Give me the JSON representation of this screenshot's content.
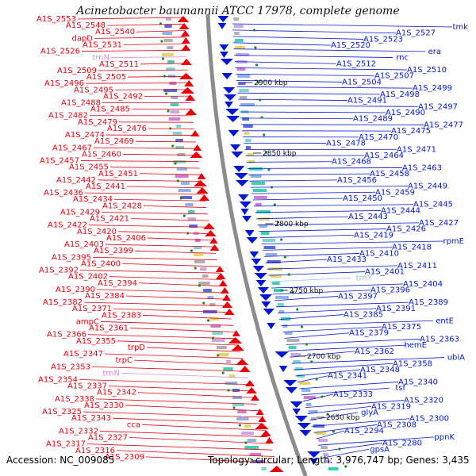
{
  "title": "Acinetobacter baumannii ATCC 17978, complete genome",
  "footer": {
    "accession": "Accession: NC_009085",
    "summary": "Topology: circular; Length: 3,976,747 bp; Genes: 3,435"
  },
  "colors": {
    "left_strand": "#e8000b",
    "right_strand": "#0018d4",
    "rna": "#e58ad6",
    "backbone": "#8c8c8c",
    "green_dot": "#1e8c1e"
  },
  "kbp_ticks": [
    "2900 kbp",
    "2850 kbp",
    "2800 kbp",
    "2750 kbp",
    "2700 kbp",
    "2650 kbp"
  ],
  "left_labels": [
    {
      "text": "A1S_2553",
      "kind": "gene"
    },
    {
      "text": "A1S_2548",
      "kind": "gene"
    },
    {
      "text": "A1S_2540",
      "kind": "gene"
    },
    {
      "text": "dapD",
      "kind": "gene"
    },
    {
      "text": "A1S_2531",
      "kind": "gene"
    },
    {
      "text": "A1S_2526",
      "kind": "gene"
    },
    {
      "text": "trnN",
      "kind": "rna"
    },
    {
      "text": "A1S_2511",
      "kind": "gene"
    },
    {
      "text": "A1S_2509",
      "kind": "gene"
    },
    {
      "text": "A1S_2505",
      "kind": "gene"
    },
    {
      "text": "A1S_2496",
      "kind": "gene"
    },
    {
      "text": "A1S_2495",
      "kind": "gene"
    },
    {
      "text": "A1S_2492",
      "kind": "gene"
    },
    {
      "text": "A1S_2488",
      "kind": "gene"
    },
    {
      "text": "A1S_2485",
      "kind": "gene"
    },
    {
      "text": "A1S_2482",
      "kind": "gene"
    },
    {
      "text": "A1S_2479",
      "kind": "gene"
    },
    {
      "text": "A1S_2476",
      "kind": "gene"
    },
    {
      "text": "A1S_2474",
      "kind": "gene"
    },
    {
      "text": "A1S_2469",
      "kind": "gene"
    },
    {
      "text": "A1S_2467",
      "kind": "gene"
    },
    {
      "text": "A1S_2460",
      "kind": "gene"
    },
    {
      "text": "A1S_2457",
      "kind": "gene"
    },
    {
      "text": "A1S_2455",
      "kind": "gene"
    },
    {
      "text": "A1S_2451",
      "kind": "gene"
    },
    {
      "text": "A1S_2442",
      "kind": "gene"
    },
    {
      "text": "A1S_2441",
      "kind": "gene"
    },
    {
      "text": "A1S_2436",
      "kind": "gene"
    },
    {
      "text": "A1S_2434",
      "kind": "gene"
    },
    {
      "text": "A1S_2428",
      "kind": "gene"
    },
    {
      "text": "A1S_2429",
      "kind": "gene"
    },
    {
      "text": "A1S_2421",
      "kind": "gene"
    },
    {
      "text": "A1S_2422",
      "kind": "gene"
    },
    {
      "text": "A1S_2420",
      "kind": "gene"
    },
    {
      "text": "A1S_2406",
      "kind": "gene"
    },
    {
      "text": "A1S_2403",
      "kind": "gene"
    },
    {
      "text": "A1S_2399",
      "kind": "gene"
    },
    {
      "text": "A1S_2395",
      "kind": "gene"
    },
    {
      "text": "A1S_2400",
      "kind": "gene"
    },
    {
      "text": "A1S_2392",
      "kind": "gene"
    },
    {
      "text": "A1S_2402",
      "kind": "gene"
    },
    {
      "text": "A1S_2394",
      "kind": "gene"
    },
    {
      "text": "A1S_2390",
      "kind": "gene"
    },
    {
      "text": "A1S_2384",
      "kind": "gene"
    },
    {
      "text": "A1S_2382",
      "kind": "gene"
    },
    {
      "text": "A1S_2371",
      "kind": "gene"
    },
    {
      "text": "A1S_2383",
      "kind": "gene"
    },
    {
      "text": "ampC",
      "kind": "gene"
    },
    {
      "text": "A1S_2361",
      "kind": "gene"
    },
    {
      "text": "A1S_2366",
      "kind": "gene"
    },
    {
      "text": "A1S_2355",
      "kind": "gene"
    },
    {
      "text": "trpD",
      "kind": "gene"
    },
    {
      "text": "A1S_2347",
      "kind": "gene"
    },
    {
      "text": "trpC",
      "kind": "gene"
    },
    {
      "text": "A1S_2353",
      "kind": "gene"
    },
    {
      "text": "trnN",
      "kind": "rna"
    },
    {
      "text": "A1S_2354",
      "kind": "gene"
    },
    {
      "text": "A1S_2337",
      "kind": "gene"
    },
    {
      "text": "A1S_2342",
      "kind": "gene"
    },
    {
      "text": "A1S_2338",
      "kind": "gene"
    },
    {
      "text": "A1S_2330",
      "kind": "gene"
    },
    {
      "text": "A1S_2325",
      "kind": "gene"
    },
    {
      "text": "A1S_2343",
      "kind": "gene"
    },
    {
      "text": "cca",
      "kind": "gene"
    },
    {
      "text": "A1S_2332",
      "kind": "gene"
    },
    {
      "text": "A1S_2327",
      "kind": "gene"
    },
    {
      "text": "A1S_2317",
      "kind": "gene"
    },
    {
      "text": "A1S_2316",
      "kind": "gene"
    },
    {
      "text": "A1S_2309",
      "kind": "gene"
    }
  ],
  "right_labels": [
    {
      "text": "tmk",
      "kind": "gene"
    },
    {
      "text": "A1S_2527",
      "kind": "gene"
    },
    {
      "text": "A1S_2523",
      "kind": "gene"
    },
    {
      "text": "A1S_2520",
      "kind": "gene"
    },
    {
      "text": "era",
      "kind": "gene"
    },
    {
      "text": "rnc",
      "kind": "gene"
    },
    {
      "text": "A1S_2512",
      "kind": "gene"
    },
    {
      "text": "A1S_2510",
      "kind": "gene"
    },
    {
      "text": "A1S_2507",
      "kind": "gene"
    },
    {
      "text": "A1S_2504",
      "kind": "gene"
    },
    {
      "text": "A1S_2499",
      "kind": "gene"
    },
    {
      "text": "A1S_2498",
      "kind": "gene"
    },
    {
      "text": "A1S_2491",
      "kind": "gene"
    },
    {
      "text": "A1S_2497",
      "kind": "gene"
    },
    {
      "text": "A1S_2490",
      "kind": "gene"
    },
    {
      "text": "A1S_2489",
      "kind": "gene"
    },
    {
      "text": "A1S_2477",
      "kind": "gene"
    },
    {
      "text": "A1S_2475",
      "kind": "gene"
    },
    {
      "text": "A1S_2470",
      "kind": "gene"
    },
    {
      "text": "A1S_2478",
      "kind": "gene"
    },
    {
      "text": "A1S_2471",
      "kind": "gene"
    },
    {
      "text": "A1S_2464",
      "kind": "gene"
    },
    {
      "text": "A1S_2468",
      "kind": "gene"
    },
    {
      "text": "A1S_2463",
      "kind": "gene"
    },
    {
      "text": "A1S_2458",
      "kind": "gene"
    },
    {
      "text": "A1S_2456",
      "kind": "gene"
    },
    {
      "text": "A1S_2449",
      "kind": "gene"
    },
    {
      "text": "A1S_2459",
      "kind": "gene"
    },
    {
      "text": "A1S_2450",
      "kind": "gene"
    },
    {
      "text": "A1S_2445",
      "kind": "gene"
    },
    {
      "text": "A1S_2444",
      "kind": "gene"
    },
    {
      "text": "A1S_2443",
      "kind": "gene"
    },
    {
      "text": "A1S_2427",
      "kind": "gene"
    },
    {
      "text": "A1S_2426",
      "kind": "gene"
    },
    {
      "text": "A1S_2419",
      "kind": "gene"
    },
    {
      "text": "rpmE",
      "kind": "gene"
    },
    {
      "text": "A1S_2418",
      "kind": "gene"
    },
    {
      "text": "A1S_2410",
      "kind": "gene"
    },
    {
      "text": "A1S_2433",
      "kind": "gene"
    },
    {
      "text": "A1S_2411",
      "kind": "gene"
    },
    {
      "text": "A1S_2401",
      "kind": "gene"
    },
    {
      "text": "trnY",
      "kind": "rna2"
    },
    {
      "text": "A1S_2404",
      "kind": "gene"
    },
    {
      "text": "A1S_2396",
      "kind": "gene"
    },
    {
      "text": "A1S_2397",
      "kind": "gene"
    },
    {
      "text": "A1S_2389",
      "kind": "gene"
    },
    {
      "text": "A1S_2391",
      "kind": "gene"
    },
    {
      "text": "A1S_2385",
      "kind": "gene"
    },
    {
      "text": "entE",
      "kind": "gene"
    },
    {
      "text": "A1S_2375",
      "kind": "gene"
    },
    {
      "text": "A1S_2379",
      "kind": "gene"
    },
    {
      "text": "A1S_2363",
      "kind": "gene"
    },
    {
      "text": "hemE",
      "kind": "gene"
    },
    {
      "text": "A1S_2362",
      "kind": "gene"
    },
    {
      "text": "ubiA",
      "kind": "gene"
    },
    {
      "text": "A1S_2358",
      "kind": "gene"
    },
    {
      "text": "A1S_2348",
      "kind": "gene"
    },
    {
      "text": "A1S_2341",
      "kind": "gene"
    },
    {
      "text": "A1S_2340",
      "kind": "gene"
    },
    {
      "text": "tsf",
      "kind": "gene"
    },
    {
      "text": "A1S_2333",
      "kind": "gene"
    },
    {
      "text": "A1S_2320",
      "kind": "gene"
    },
    {
      "text": "A1S_2319",
      "kind": "gene"
    },
    {
      "text": "glyA",
      "kind": "gene"
    },
    {
      "text": "A1S_2300",
      "kind": "gene"
    },
    {
      "text": "A1S_2308",
      "kind": "gene"
    },
    {
      "text": "A1S_2294",
      "kind": "gene"
    },
    {
      "text": "ppnK",
      "kind": "gene"
    },
    {
      "text": "A1S_2280",
      "kind": "gene"
    },
    {
      "text": "gpsA",
      "kind": "gene"
    }
  ]
}
